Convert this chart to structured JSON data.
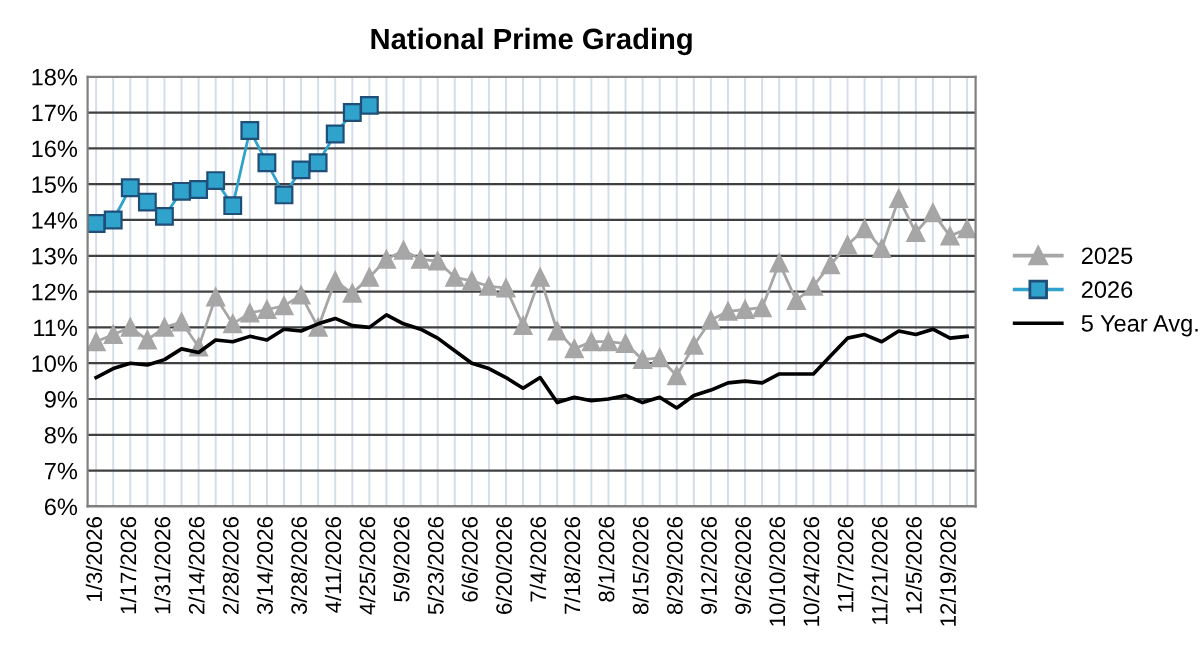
{
  "chart_data": {
    "type": "line",
    "title": "National Prime Grading",
    "categories": [
      "1/3/2026",
      null,
      "1/17/2026",
      null,
      "1/31/2026",
      null,
      "2/14/2026",
      null,
      "2/28/2026",
      null,
      "3/14/2026",
      null,
      "3/28/2026",
      null,
      "4/11/2026",
      null,
      "4/25/2026",
      null,
      "5/9/2026",
      null,
      "5/23/2026",
      null,
      "6/6/2026",
      null,
      "6/20/2026",
      null,
      "7/4/2026",
      null,
      "7/18/2026",
      null,
      "8/1/2026",
      null,
      "8/15/2026",
      null,
      "8/29/2026",
      null,
      "9/12/2026",
      null,
      "9/26/2026",
      null,
      "10/10/2026",
      null,
      "10/24/2026",
      null,
      "11/7/2026",
      null,
      "11/21/2026",
      null,
      "12/5/2026",
      null,
      "12/19/2026",
      null
    ],
    "series": [
      {
        "name": "2025",
        "color": "#a6a6a6",
        "marker": "triangle",
        "values": [
          10.6,
          10.8,
          11.0,
          10.65,
          11.0,
          11.15,
          10.45,
          11.85,
          11.1,
          11.4,
          11.5,
          11.6,
          11.9,
          11.0,
          12.3,
          11.95,
          12.4,
          12.9,
          13.15,
          12.9,
          12.85,
          12.4,
          12.3,
          12.15,
          12.1,
          11.05,
          12.4,
          10.9,
          10.4,
          10.6,
          10.6,
          10.55,
          10.1,
          10.15,
          9.65,
          10.5,
          11.2,
          11.45,
          11.5,
          11.55,
          12.8,
          11.75,
          12.15,
          12.75,
          13.3,
          13.75,
          13.2,
          14.6,
          13.65,
          14.2,
          13.55,
          13.75
        ]
      },
      {
        "name": "2026",
        "color": "#2fa3cc",
        "marker": "square",
        "values": [
          13.9,
          14.0,
          14.9,
          14.5,
          14.1,
          14.8,
          14.85,
          15.1,
          14.4,
          16.5,
          15.6,
          14.7,
          15.4,
          15.6,
          16.4,
          17.0,
          17.2,
          null,
          null,
          null,
          null,
          null,
          null,
          null,
          null,
          null,
          null,
          null,
          null,
          null,
          null,
          null,
          null,
          null,
          null,
          null,
          null,
          null,
          null,
          null,
          null,
          null,
          null,
          null,
          null,
          null,
          null,
          null,
          null,
          null,
          null,
          null
        ]
      },
      {
        "name": "5 Year Avg.",
        "color": "#000000",
        "marker": "none",
        "values": [
          9.6,
          9.85,
          10.0,
          9.95,
          10.1,
          10.4,
          10.3,
          10.65,
          10.6,
          10.75,
          10.65,
          10.95,
          10.9,
          11.1,
          11.25,
          11.05,
          11.0,
          11.35,
          11.1,
          10.95,
          10.7,
          10.35,
          10.0,
          9.85,
          9.6,
          9.3,
          9.6,
          8.9,
          9.05,
          8.95,
          9.0,
          9.1,
          8.9,
          9.05,
          8.75,
          9.1,
          9.25,
          9.45,
          9.5,
          9.45,
          9.7,
          9.7,
          9.7,
          10.2,
          10.7,
          10.8,
          10.6,
          10.9,
          10.8,
          10.95,
          10.7,
          10.75
        ]
      }
    ],
    "ylim": [
      6,
      18
    ],
    "yticks": [
      {
        "value": 6,
        "label": "6%"
      },
      {
        "value": 7,
        "label": "7%"
      },
      {
        "value": 8,
        "label": "8%"
      },
      {
        "value": 9,
        "label": "9%"
      },
      {
        "value": 10,
        "label": "10%"
      },
      {
        "value": 11,
        "label": "11%"
      },
      {
        "value": 12,
        "label": "12%"
      },
      {
        "value": 13,
        "label": "13%"
      },
      {
        "value": 14,
        "label": "14%"
      },
      {
        "value": 15,
        "label": "15%"
      },
      {
        "value": 16,
        "label": "16%"
      },
      {
        "value": 17,
        "label": "17%"
      },
      {
        "value": 18,
        "label": "18%"
      }
    ],
    "grid": true,
    "legend": "right",
    "line_style": "solid"
  }
}
